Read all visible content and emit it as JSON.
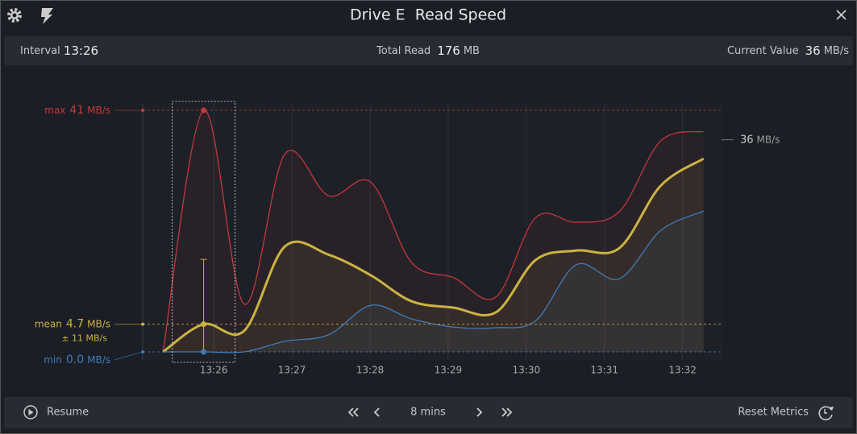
{
  "window": {
    "title": "Drive E  Read Speed"
  },
  "stats": {
    "interval": {
      "label": "Interval",
      "value": "13:26"
    },
    "total_read": {
      "label": "Total Read",
      "value": 176,
      "unit": "MB"
    },
    "current_value": {
      "label": "Current Value",
      "value": 36,
      "unit": "MB/s"
    }
  },
  "chart_data": {
    "type": "line",
    "x": [
      25.35,
      25.87,
      26.39,
      26.91,
      27.47,
      28.01,
      28.53,
      29.07,
      29.61,
      30.12,
      30.64,
      31.19,
      31.72,
      32.27
    ],
    "xlim": [
      25.09,
      32.52
    ],
    "xticks": [
      {
        "value": 26,
        "label": "13:26"
      },
      {
        "value": 27,
        "label": "13:27"
      },
      {
        "value": 28,
        "label": "13:28"
      },
      {
        "value": 29,
        "label": "13:29"
      },
      {
        "value": 30,
        "label": "13:30"
      },
      {
        "value": 31,
        "label": "13:31"
      },
      {
        "value": 32,
        "label": "13:32"
      }
    ],
    "ylim": [
      0,
      41
    ],
    "series": [
      {
        "name": "max",
        "color": "#c2393c",
        "values": [
          0,
          41,
          8.1,
          33.6,
          26.5,
          28.8,
          15.2,
          12.6,
          9.3,
          22.8,
          22.0,
          23.8,
          35.8,
          37.4
        ]
      },
      {
        "name": "mean",
        "color": "#cbb342",
        "values": [
          0,
          4.7,
          3.6,
          17.9,
          16.5,
          13.0,
          8.6,
          7.5,
          6.7,
          15.6,
          17.2,
          17.6,
          28.2,
          32.8
        ]
      },
      {
        "name": "min",
        "color": "#3f7cba",
        "values": [
          0,
          0,
          0,
          1.8,
          2.9,
          7.9,
          5.6,
          4.2,
          4.1,
          5.3,
          14.8,
          12.4,
          20.6,
          23.9
        ]
      }
    ],
    "annotations": {
      "max": {
        "value": 41,
        "unit": "MB/s"
      },
      "mean": {
        "value": 4.7,
        "unit": "MB/s",
        "error": 11,
        "error_label": "± 11 MB/s"
      },
      "min": {
        "value": {
          "value": 0,
          "label": "0.0"
        },
        "unit": "MB/s"
      },
      "current": {
        "value": 36,
        "unit": "MB/s"
      }
    }
  },
  "footer": {
    "resume": "Resume",
    "range": "8 mins",
    "reset": "Reset Metrics"
  }
}
